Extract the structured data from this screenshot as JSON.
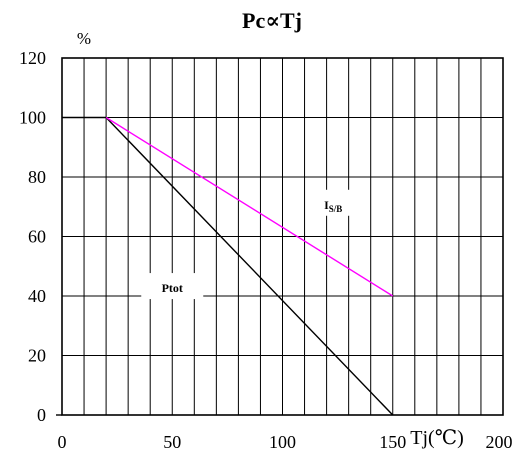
{
  "chart_data": {
    "type": "line",
    "title": "Pc∝Tj",
    "ylabel": "%",
    "xlabel": "Tj(℃)",
    "xlim": [
      0,
      200
    ],
    "ylim": [
      0,
      120
    ],
    "x_ticks": [
      0,
      50,
      100,
      150,
      200
    ],
    "y_ticks": [
      0,
      20,
      40,
      60,
      80,
      100,
      120
    ],
    "grid": true,
    "series": [
      {
        "name": "Ptot",
        "color": "#000000",
        "x": [
          0,
          20,
          150
        ],
        "y": [
          100,
          100,
          0
        ]
      },
      {
        "name": "I",
        "subscript": "S/B",
        "color": "#ff00ff",
        "x": [
          20,
          150
        ],
        "y": [
          100,
          40
        ]
      }
    ],
    "annotations": [
      {
        "series": "Ptot",
        "x": 50,
        "y": 43
      },
      {
        "series": "I",
        "x": 123,
        "y": 71
      }
    ]
  }
}
